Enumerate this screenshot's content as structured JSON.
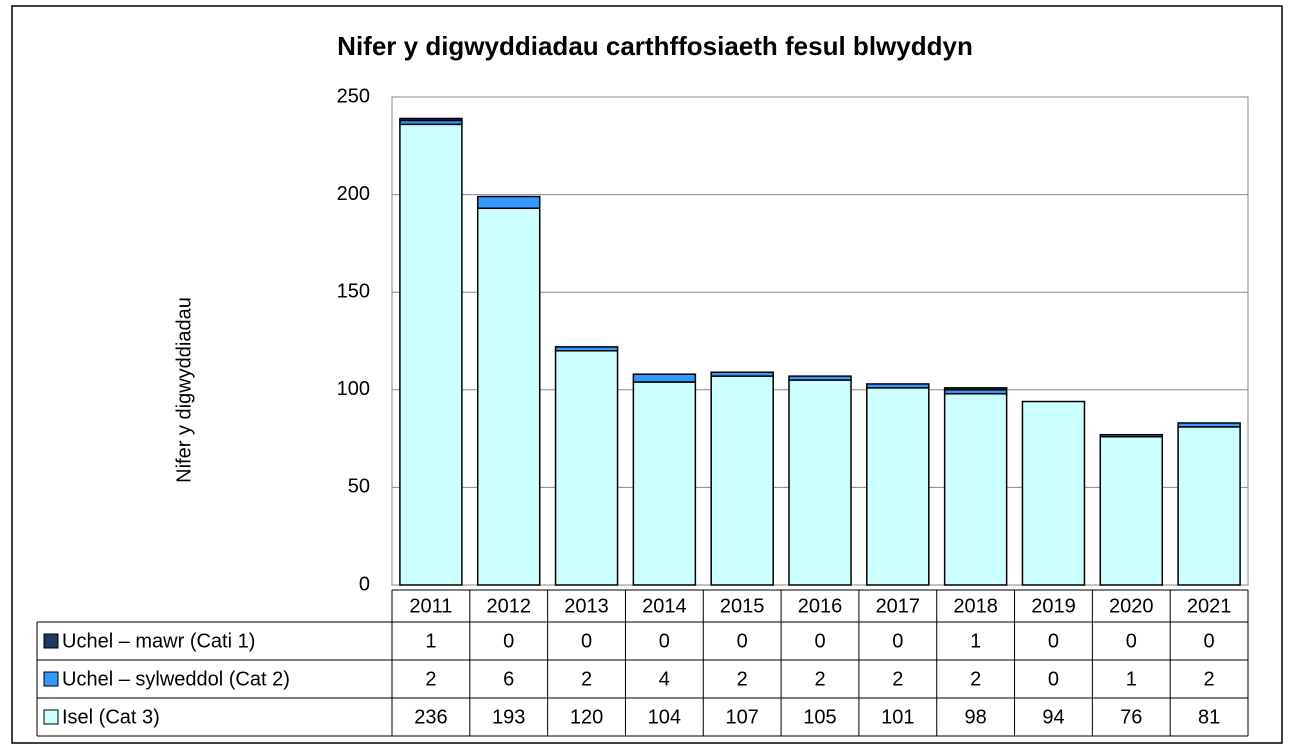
{
  "chart_data": {
    "type": "stacked_bar",
    "title": "Nifer y digwyddiadau carthffosiaeth fesul blwyddyn",
    "y_label": "Nifer y digwyddiadau",
    "categories": [
      "2011",
      "2012",
      "2013",
      "2014",
      "2015",
      "2016",
      "2017",
      "2018",
      "2019",
      "2020",
      "2021"
    ],
    "series": [
      {
        "name": "Uchel – mawr (Cati 1)",
        "color": "#1f3864",
        "values": [
          1,
          0,
          0,
          0,
          0,
          0,
          0,
          1,
          0,
          0,
          0
        ]
      },
      {
        "name": "Uchel – sylweddol (Cat 2)",
        "color": "#3399ff",
        "values": [
          2,
          6,
          2,
          4,
          2,
          2,
          2,
          2,
          0,
          1,
          2
        ]
      },
      {
        "name": "Isel (Cat 3)",
        "color": "#ccffff",
        "values": [
          236,
          193,
          120,
          104,
          107,
          105,
          101,
          98,
          94,
          76,
          81
        ]
      }
    ],
    "ylim": [
      0,
      250
    ],
    "yticks": [
      0,
      50,
      100,
      150,
      200,
      250
    ],
    "grid": true
  }
}
